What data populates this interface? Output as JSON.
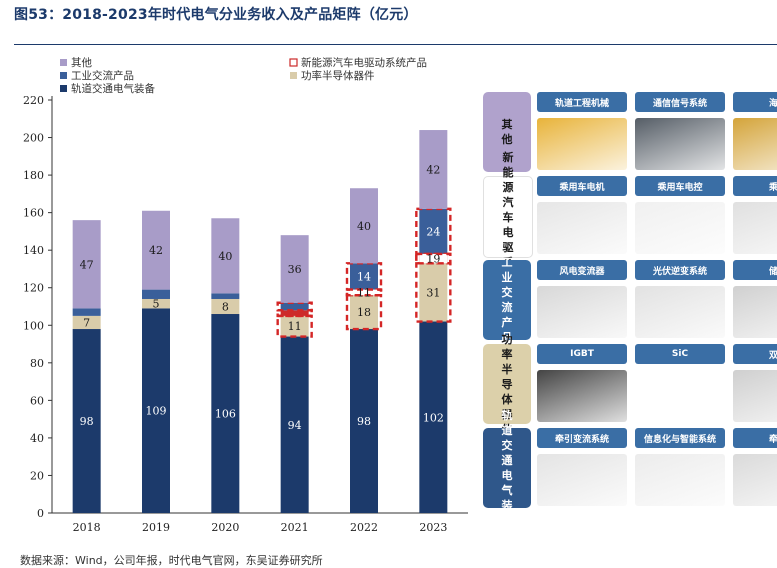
{
  "title": "图53：2018-2023年时代电气分业务收入及产品矩阵（亿元）",
  "footer": "数据来源：Wind，公司年报，时代电气官网，东吴证券研究所",
  "chart_data": {
    "type": "bar",
    "stacked": true,
    "categories": [
      "2018",
      "2019",
      "2020",
      "2021",
      "2022",
      "2023"
    ],
    "ylim": [
      0,
      220
    ],
    "yticks": [
      0,
      20,
      40,
      60,
      80,
      100,
      120,
      140,
      160,
      180,
      200,
      220
    ],
    "grid": false,
    "legend_position": "top-left",
    "series": [
      {
        "name": "轨道交通电气装备",
        "color": "#1c3a6b",
        "values": [
          98,
          109,
          106,
          94,
          98,
          102
        ],
        "labels": [
          "98",
          "109",
          "106",
          "94",
          "98",
          "102"
        ],
        "label_color": "#ffffff"
      },
      {
        "name": "功率半导体器件",
        "color": "#d9ccaa",
        "values": [
          7,
          5,
          8,
          11,
          18,
          31
        ],
        "labels": [
          "7",
          "5",
          "8",
          "11",
          "18",
          "31"
        ],
        "label_color": "#1a1a1a",
        "dashed_border": [
          false,
          false,
          false,
          true,
          true,
          true
        ]
      },
      {
        "name": "新能源汽车电驱动系统产品",
        "color": "#cc2a2a",
        "values": [
          0,
          0,
          0,
          3,
          3,
          5
        ],
        "labels": [
          "",
          "",
          "",
          "",
          "",
          ""
        ],
        "label_color": "#1a1a1a",
        "dashed_border": [
          false,
          false,
          false,
          true,
          true,
          true
        ]
      },
      {
        "name": "工业交流产品",
        "color": "#3a5f9a",
        "values": [
          4,
          5,
          3,
          4,
          14,
          24
        ],
        "labels": [
          "",
          "",
          "",
          "",
          "14",
          "24"
        ],
        "label_color": "#ffffff",
        "dashed_border": [
          false,
          false,
          false,
          true,
          true,
          true
        ]
      },
      {
        "name": "其他",
        "color": "#a89cc8",
        "values": [
          47,
          42,
          40,
          36,
          40,
          42
        ],
        "labels": [
          "47",
          "42",
          "40",
          "36",
          "40",
          "42"
        ],
        "label_color": "#1a1a1a"
      }
    ],
    "dashed_overlay": {
      "2022": [
        "11"
      ],
      "2023": [
        "19"
      ]
    },
    "legend": [
      {
        "name": "其他",
        "color": "#a89cc8"
      },
      {
        "name": "新能源汽车电驱动系统产品",
        "color": "#ffffff",
        "border": "#cc2a2a"
      },
      {
        "name": "工业交流产品",
        "color": "#3a5f9a"
      },
      {
        "name": "功率半导体器件",
        "color": "#d9ccaa"
      },
      {
        "name": "轨道交通电气装备",
        "color": "#1c3a6b"
      }
    ]
  },
  "matrix": {
    "head_colors": {
      "其他": "#b0a2cc",
      "新能源汽车电驱系统": "#ffffff",
      "工业交流产品": "#3a6ea5",
      "功率半导体器件": "#dcd0aa",
      "轨道交通电气装备": "#2f578a"
    },
    "rows": [
      {
        "head": "其他",
        "head_color": "#b0a2cc",
        "head_text": "#1a1a1a",
        "cells": [
          {
            "label": "轨道工程机械",
            "img": "#e8b33a"
          },
          {
            "label": "通信信号系统",
            "img": "#555d66"
          },
          {
            "label": "海工",
            "img": "#d4a43a"
          }
        ]
      },
      {
        "head": "新能源汽车电驱系统",
        "head_color": "#ffffff",
        "head_text": "#1a1a1a",
        "cells": [
          {
            "label": "乘用车电机",
            "img": "#e6e6e6"
          },
          {
            "label": "乘用车电控",
            "img": "#f0f0f0"
          },
          {
            "label": "乘用",
            "img": "#e0e0e0"
          }
        ]
      },
      {
        "head": "工业交流产品",
        "head_color": "#3a6ea5",
        "head_text": "#ffffff",
        "cells": [
          {
            "label": "风电变流器",
            "img": "#d8d8d8"
          },
          {
            "label": "光伏逆变系统",
            "img": "#e2e2e2"
          },
          {
            "label": "储能",
            "img": "#d0d0d0"
          }
        ]
      },
      {
        "head": "功率半导体器件",
        "head_color": "#dcd0aa",
        "head_text": "#1a1a1a",
        "cells": [
          {
            "label": "IGBT",
            "img": "#444444"
          },
          {
            "label": "SiC",
            "img": "#ffffff"
          },
          {
            "label": "双极",
            "img": "#cfcfcf"
          }
        ]
      },
      {
        "head": "轨道交通电气装备",
        "head_color": "#2f578a",
        "head_text": "#ffffff",
        "cells": [
          {
            "label": "牵引变流系统",
            "img": "#e4e4e4"
          },
          {
            "label": "信息化与智能系统",
            "img": "#ececec"
          },
          {
            "label": "牵引",
            "img": "#dadada"
          }
        ]
      }
    ],
    "cell_label_color": "#3a6ea5"
  }
}
